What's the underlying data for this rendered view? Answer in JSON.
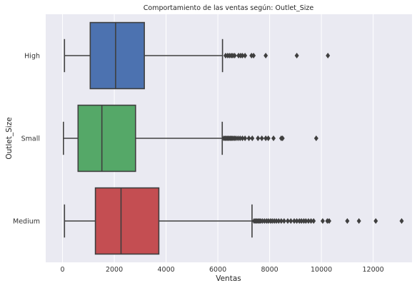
{
  "chart_data": {
    "type": "boxplot",
    "orientation": "horizontal",
    "title": "Comportamiento de las ventas según: Outlet_Size",
    "xlabel": "Ventas",
    "ylabel": "Outlet_Size",
    "xlim": [
      -650,
      13500
    ],
    "xticks": [
      0,
      2000,
      4000,
      6000,
      8000,
      10000,
      12000
    ],
    "grid": true,
    "theme": "seaborn-darkgrid",
    "colors": {
      "background": "#eaeaf2",
      "grid": "#ffffff",
      "line": "#3f3f3f",
      "flier": "#3f3f3f"
    },
    "categories": [
      "High",
      "Small",
      "Medium"
    ],
    "boxes": [
      {
        "category": "High",
        "color": "#4c72b0",
        "whisker_low": 75,
        "q1": 1070,
        "median": 2050,
        "q3": 3160,
        "whisker_high": 6180,
        "fliers": [
          6300,
          6380,
          6450,
          6520,
          6580,
          6650,
          6800,
          6880,
          6950,
          7050,
          7300,
          7380,
          7850,
          9050,
          10250
        ]
      },
      {
        "category": "Small",
        "color": "#55a868",
        "whisker_low": 35,
        "q1": 600,
        "median": 1520,
        "q3": 2820,
        "whisker_high": 6170,
        "fliers": [
          6230,
          6280,
          6330,
          6380,
          6430,
          6480,
          6530,
          6580,
          6640,
          6700,
          6780,
          6860,
          6950,
          7050,
          7200,
          7330,
          7550,
          7700,
          7850,
          7950,
          8150,
          8450,
          8500,
          9800
        ]
      },
      {
        "category": "Medium",
        "color": "#c44e52",
        "whisker_low": 75,
        "q1": 1270,
        "median": 2260,
        "q3": 3720,
        "whisker_high": 7320,
        "fliers": [
          7400,
          7450,
          7500,
          7550,
          7600,
          7650,
          7720,
          7800,
          7880,
          7950,
          8030,
          8100,
          8180,
          8260,
          8350,
          8450,
          8560,
          8700,
          8820,
          8950,
          9050,
          9150,
          9230,
          9320,
          9400,
          9500,
          9600,
          9700,
          10050,
          10230,
          10300,
          11000,
          11450,
          12100,
          13100
        ]
      }
    ]
  }
}
